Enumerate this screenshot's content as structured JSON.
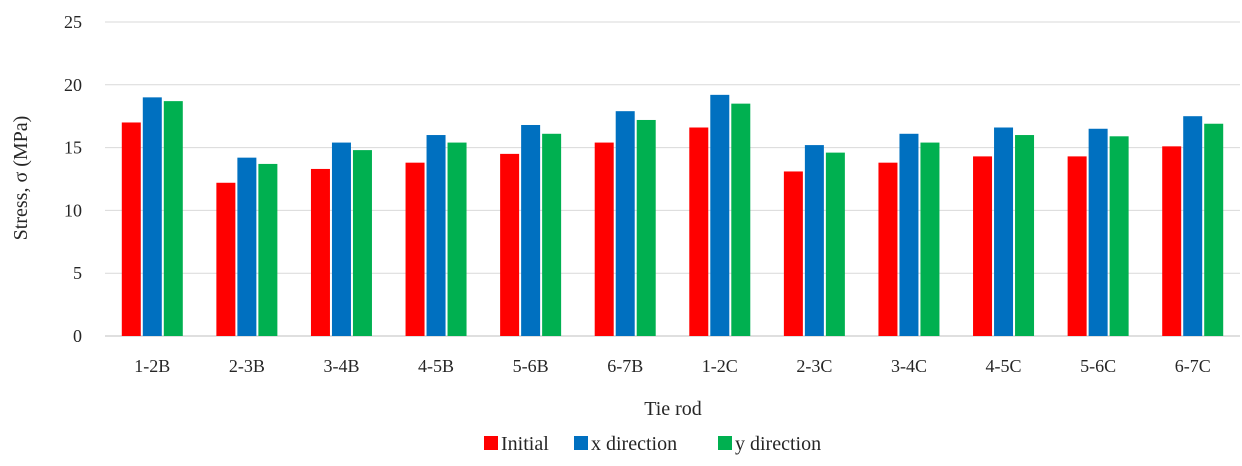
{
  "chart_data": {
    "type": "bar",
    "title": "",
    "xlabel": "Tie rod",
    "ylabel": "Stress, σ (MPa)",
    "ylim": [
      0,
      25
    ],
    "yticks": [
      0,
      5,
      10,
      15,
      20,
      25
    ],
    "grid": true,
    "legend_position": "bottom",
    "categories": [
      "1-2B",
      "2-3B",
      "3-4B",
      "4-5B",
      "5-6B",
      "6-7B",
      "1-2C",
      "2-3C",
      "3-4C",
      "4-5C",
      "5-6C",
      "6-7C"
    ],
    "series": [
      {
        "name": "Initial",
        "color": "#ff0000",
        "values": [
          17.0,
          12.2,
          13.3,
          13.8,
          14.5,
          15.4,
          16.6,
          13.1,
          13.8,
          14.3,
          14.3,
          15.1
        ]
      },
      {
        "name": "x direction",
        "color": "#0070c0",
        "values": [
          19.0,
          14.2,
          15.4,
          16.0,
          16.8,
          17.9,
          19.2,
          15.2,
          16.1,
          16.6,
          16.5,
          17.5
        ]
      },
      {
        "name": "y direction",
        "color": "#00b050",
        "values": [
          18.7,
          13.7,
          14.8,
          15.4,
          16.1,
          17.2,
          18.5,
          14.6,
          15.4,
          16.0,
          15.9,
          16.9
        ]
      }
    ]
  }
}
